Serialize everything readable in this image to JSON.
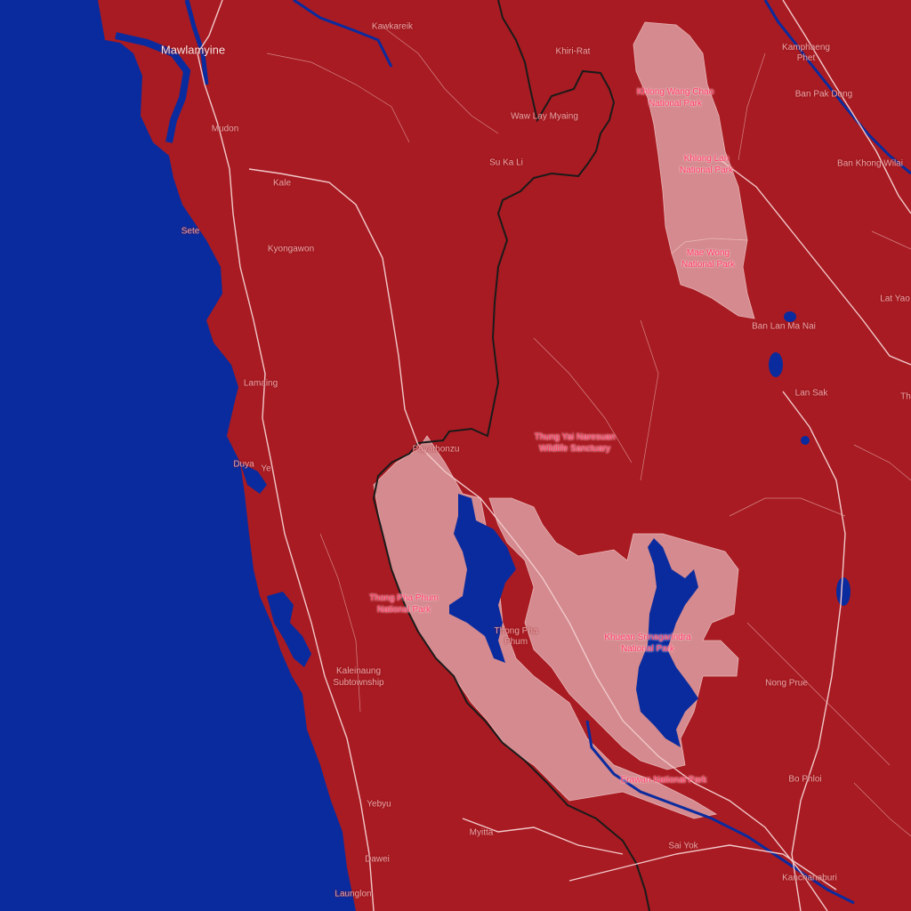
{
  "map": {
    "colors": {
      "land": "#a81b22",
      "water": "#0a2b9e",
      "protected_area": "#d48a8e",
      "road": "#f2c9cb",
      "border": "#1a1a1a"
    },
    "places": {
      "mawlamyine": "Mawlamyine",
      "kawkareik": "Kawkareik",
      "khiri_rat": "Khiri-Rat",
      "kamphaeng_phet": "Kamphaeng Phet",
      "mudon": "Mudon",
      "waw_lay_myaing": "Waw Lay Myaing",
      "ban_pak_dong": "Ban Pak Dong",
      "su_ka_li": "Su Ka Li",
      "ban_khong_wilai": "Ban Khong Wilai",
      "kale": "Kale",
      "sete": "Sete",
      "kyongawon": "Kyongawon",
      "lat_yao": "Lat Yao",
      "ban_lan_ma_nai": "Ban Lan Ma Nai",
      "lamaing": "Lamaing",
      "lan_sak": "Lan Sak",
      "t_edge": "Th",
      "payathonzu": "Payathonzu",
      "duya": "Duya",
      "ye": "Ye",
      "thong_pha_phum_town": "Thong Pha Phum",
      "kaleinaung": "Kaleinaung Subtownship",
      "nong_prue": "Nong Prue",
      "bo_phloi": "Bo Phloi",
      "yebyu": "Yebyu",
      "myitta": "Myitta",
      "sai_yok": "Sai Yok",
      "dawei": "Dawei",
      "launglon": "Launglon",
      "kanchanaburi": "Kanchanaburi"
    },
    "parks": {
      "khlong_wang_chao": "Khlong Wang Chao National Park",
      "khlong_lan": "Khlong Lan National Park",
      "mae_wong": "Mae Wong National Park",
      "thung_yai": "Thung Yai Naresuan Wildlife Sanctuary",
      "thong_pha_phum": "Thong Pha Phum National Park",
      "khuean_srinagarindra": "Khuean Srinagarindra National Park",
      "erawan": "Erawan National Park"
    }
  }
}
